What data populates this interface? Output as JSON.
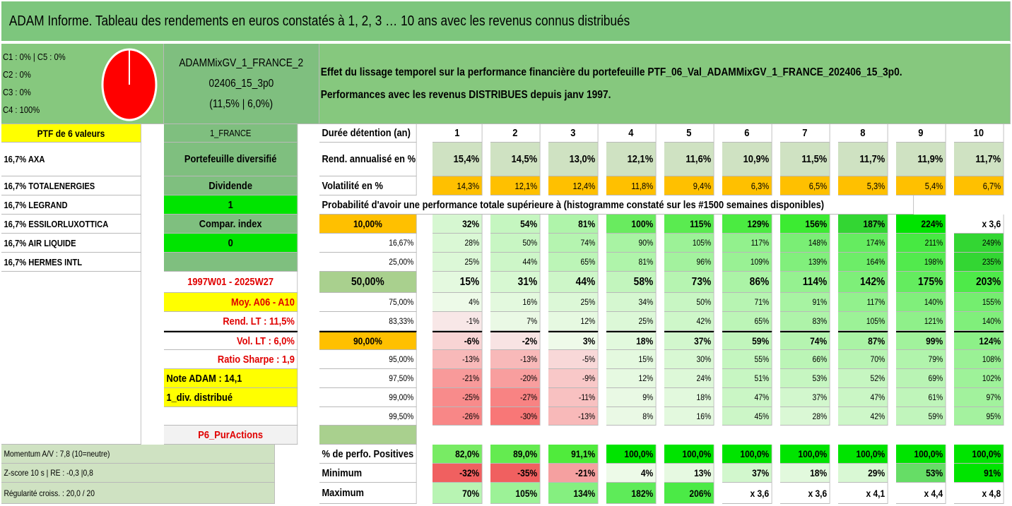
{
  "title": "ADAM Informe. Tableau des rendements en euros constatés à 1, 2, 3 … 10 ans avec les revenus connus distribués",
  "pie_legend": [
    "C1 : 0% | C5 : 0%",
    "C2 : 0%",
    "C3 : 0%",
    "C4 : 100%"
  ],
  "pie": {
    "fill": "#ff0000",
    "c4_share": 1.0
  },
  "portfolio_name_lines": [
    "ADAMMixGV_1_FRANCE_2",
    "02406_15_3p0",
    "(11,5% | 6,0%)"
  ],
  "description_lines": [
    "Effet du lissage temporel sur la performance financière du portefeuille PTF_06_Val_ADAMMixGV_1_FRANCE_202406_15_3p0.",
    "Performances avec les revenus DISTRIBUES depuis janv 1997."
  ],
  "ptf_label": "PTF de 6 valeurs",
  "country": "1_FRANCE",
  "holdings": [
    "16,7% AXA",
    "16,7% TOTALENERGIES",
    "16,7% LEGRAND",
    "16,7% ESSILORLUXOTTICA",
    "16,7% AIR LIQUIDE",
    "16,7% HERMES INTL"
  ],
  "mid_labels": {
    "diversified": "Portefeuille diversifié",
    "dividend": "Dividende",
    "dividend_value": "1",
    "compar": "Compar. index",
    "compar_value": "0",
    "period": "1997W01 - 2025W27",
    "moy": "Moy. A06 - A10",
    "rend_lt": "Rend. LT : 11,5%",
    "vol_lt": "Vol. LT : 6,0%",
    "sharpe": "Ratio Sharpe : 1,9",
    "note": "Note ADAM : 14,1",
    "div": "1_div. distribué",
    "p6": "P6_PurActions",
    "momentum": "Momentum A/V : 7,8 (10=neutre)",
    "zscore": "Z-score 10 s | RE : -0,3 |0,8",
    "regularite": "Régularité croiss. : 20,0 / 20"
  },
  "row_labels": {
    "duration": "Durée détention (an)",
    "rend": "Rend. annualisé en %",
    "vol": "Volatilité en %",
    "prob": "Probabilité d'avoir une performance totale supérieure à (histogramme constaté sur les #1500 semaines disponibles)",
    "pos": "% de perfo. Positives",
    "min": "Minimum",
    "max": "Maximum"
  },
  "years": [
    "1",
    "2",
    "3",
    "4",
    "5",
    "6",
    "7",
    "8",
    "9",
    "10"
  ],
  "rend": [
    "15,4%",
    "14,5%",
    "13,0%",
    "12,1%",
    "11,6%",
    "10,9%",
    "11,5%",
    "11,7%",
    "11,9%",
    "11,7%"
  ],
  "vol": [
    "14,3%",
    "12,1%",
    "12,4%",
    "11,8%",
    "9,4%",
    "6,3%",
    "6,5%",
    "5,3%",
    "5,4%",
    "6,7%"
  ],
  "percentiles": [
    {
      "p": "10,00%",
      "values": [
        "32%",
        "54%",
        "81%",
        "100%",
        "115%",
        "129%",
        "156%",
        "187%",
        "224%",
        "x 3,6"
      ]
    },
    {
      "p": "16,67%",
      "values": [
        "28%",
        "50%",
        "74%",
        "90%",
        "105%",
        "117%",
        "148%",
        "174%",
        "211%",
        "249%"
      ]
    },
    {
      "p": "25,00%",
      "values": [
        "25%",
        "44%",
        "65%",
        "81%",
        "96%",
        "109%",
        "139%",
        "164%",
        "198%",
        "235%"
      ]
    },
    {
      "p": "50,00%",
      "values": [
        "15%",
        "31%",
        "44%",
        "58%",
        "73%",
        "86%",
        "114%",
        "142%",
        "175%",
        "203%"
      ]
    },
    {
      "p": "75,00%",
      "values": [
        "4%",
        "16%",
        "25%",
        "34%",
        "50%",
        "71%",
        "91%",
        "117%",
        "140%",
        "155%"
      ]
    },
    {
      "p": "83,33%",
      "values": [
        "-1%",
        "7%",
        "12%",
        "25%",
        "42%",
        "65%",
        "83%",
        "105%",
        "121%",
        "140%"
      ]
    },
    {
      "p": "90,00%",
      "values": [
        "-6%",
        "-2%",
        "3%",
        "18%",
        "37%",
        "59%",
        "74%",
        "87%",
        "99%",
        "124%"
      ]
    },
    {
      "p": "95,00%",
      "values": [
        "-13%",
        "-13%",
        "-5%",
        "15%",
        "30%",
        "55%",
        "66%",
        "70%",
        "79%",
        "108%"
      ]
    },
    {
      "p": "97,50%",
      "values": [
        "-21%",
        "-20%",
        "-9%",
        "12%",
        "24%",
        "51%",
        "53%",
        "52%",
        "69%",
        "102%"
      ]
    },
    {
      "p": "99,00%",
      "values": [
        "-25%",
        "-27%",
        "-11%",
        "9%",
        "18%",
        "47%",
        "37%",
        "47%",
        "61%",
        "97%"
      ]
    },
    {
      "p": "99,50%",
      "values": [
        "-26%",
        "-30%",
        "-13%",
        "8%",
        "16%",
        "45%",
        "28%",
        "42%",
        "59%",
        "95%"
      ]
    }
  ],
  "pos": [
    "82,0%",
    "89,0%",
    "91,1%",
    "100,0%",
    "100,0%",
    "100,0%",
    "100,0%",
    "100,0%",
    "100,0%",
    "100,0%"
  ],
  "min": [
    "-32%",
    "-35%",
    "-21%",
    "4%",
    "13%",
    "37%",
    "18%",
    "29%",
    "53%",
    "91%"
  ],
  "max": [
    "70%",
    "105%",
    "134%",
    "182%",
    "206%",
    "x 3,6",
    "x 3,6",
    "x 4,1",
    "x 4,4",
    "x 4,8"
  ],
  "colors": {
    "header_green": "#7dc67d",
    "yellow": "#ffff00",
    "orange": "#ffc000",
    "bright_green": "#00e400",
    "red": "#ff0000"
  }
}
